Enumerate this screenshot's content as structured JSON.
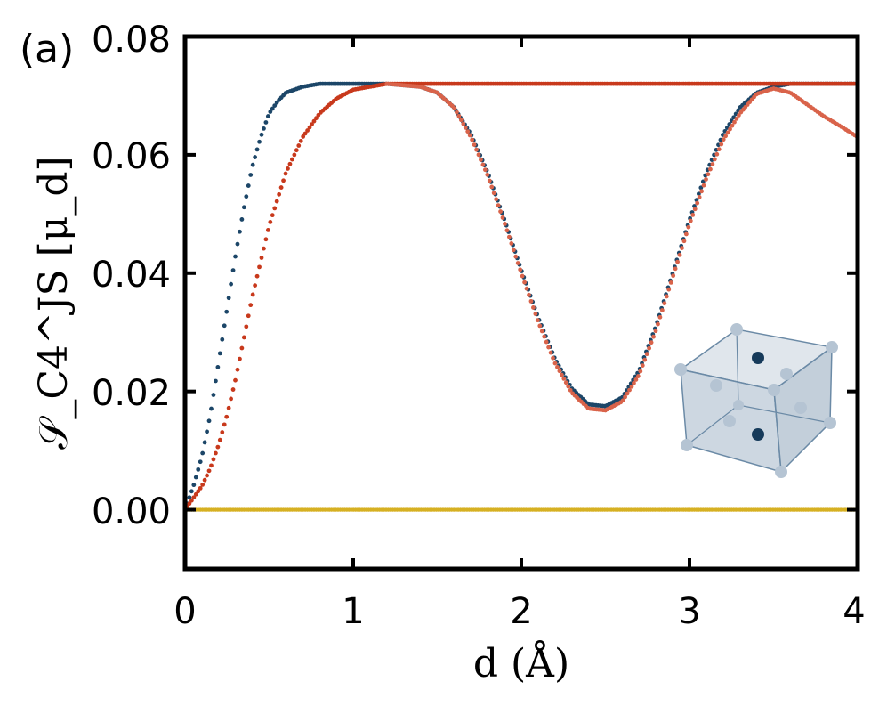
{
  "panel_label": "(a)",
  "chart_data": {
    "type": "scatter",
    "xlabel": "d (Å)",
    "ylabel": "𝒮_C4^JS [μ_d]",
    "xlim": [
      0,
      4
    ],
    "ylim": [
      -0.01,
      0.08
    ],
    "x_ticks": [
      "0",
      "1",
      "2",
      "3",
      "4"
    ],
    "y_ticks": [
      "0.00",
      "0.02",
      "0.04",
      "0.06",
      "0.08"
    ],
    "grid": false,
    "legend": "none",
    "colors": {
      "navy": "#1c4668",
      "red": "#c8391c",
      "salmon": "#d9634a",
      "gold": "#d6b022"
    },
    "series": [
      {
        "color": "navy",
        "x": [
          0.0,
          0.05,
          0.1,
          0.15,
          0.2,
          0.25,
          0.3,
          0.35,
          0.4,
          0.45,
          0.5,
          0.55,
          0.6,
          0.7,
          0.8,
          1.0,
          1.2,
          1.4,
          1.5,
          1.6,
          1.7,
          1.8,
          1.9,
          2.0,
          2.1,
          2.2,
          2.3,
          2.4,
          2.5,
          2.6,
          2.7,
          2.8,
          2.9,
          3.0,
          3.1,
          3.2,
          3.3,
          3.4,
          3.5,
          3.6,
          3.8,
          4.0
        ],
        "y": [
          0.0,
          0.004,
          0.009,
          0.016,
          0.025,
          0.034,
          0.043,
          0.051,
          0.058,
          0.063,
          0.067,
          0.069,
          0.0705,
          0.0715,
          0.072,
          0.072,
          0.072,
          0.0715,
          0.0705,
          0.068,
          0.0635,
          0.057,
          0.049,
          0.0405,
          0.0325,
          0.0255,
          0.0205,
          0.0178,
          0.0175,
          0.019,
          0.0235,
          0.031,
          0.04,
          0.049,
          0.057,
          0.0635,
          0.068,
          0.0705,
          0.0715,
          0.072,
          0.072,
          0.072
        ]
      },
      {
        "color": "red",
        "x": [
          0.0,
          0.05,
          0.1,
          0.15,
          0.2,
          0.25,
          0.3,
          0.35,
          0.4,
          0.45,
          0.5,
          0.6,
          0.7,
          0.8,
          0.9,
          1.0,
          1.1,
          1.2,
          1.5,
          2.0,
          2.5,
          3.0,
          3.5,
          4.0
        ],
        "y": [
          0.0,
          0.002,
          0.004,
          0.007,
          0.011,
          0.016,
          0.022,
          0.029,
          0.036,
          0.042,
          0.048,
          0.057,
          0.063,
          0.067,
          0.0695,
          0.071,
          0.0715,
          0.072,
          0.072,
          0.072,
          0.072,
          0.072,
          0.072,
          0.072
        ]
      },
      {
        "color": "salmon",
        "x": [
          1.2,
          1.4,
          1.5,
          1.6,
          1.7,
          1.8,
          1.9,
          2.0,
          2.1,
          2.2,
          2.3,
          2.4,
          2.5,
          2.6,
          2.7,
          2.8,
          2.9,
          3.0,
          3.1,
          3.2,
          3.3,
          3.4,
          3.5,
          3.6,
          3.7,
          3.8,
          3.9,
          4.0
        ],
        "y": [
          0.072,
          0.0715,
          0.0705,
          0.068,
          0.063,
          0.0565,
          0.0485,
          0.04,
          0.0318,
          0.0248,
          0.0198,
          0.0171,
          0.0168,
          0.0183,
          0.0228,
          0.0303,
          0.0393,
          0.0483,
          0.056,
          0.0625,
          0.067,
          0.0703,
          0.0712,
          0.0705,
          0.0685,
          0.0665,
          0.0648,
          0.063
        ]
      },
      {
        "color": "gold",
        "x": [
          0.0,
          0.5,
          1.0,
          1.5,
          2.0,
          2.5,
          3.0,
          3.5,
          4.0
        ],
        "y": [
          0.0,
          0.0,
          0.0,
          0.0,
          0.0,
          0.0,
          0.0,
          0.0,
          0.0
        ]
      }
    ]
  }
}
